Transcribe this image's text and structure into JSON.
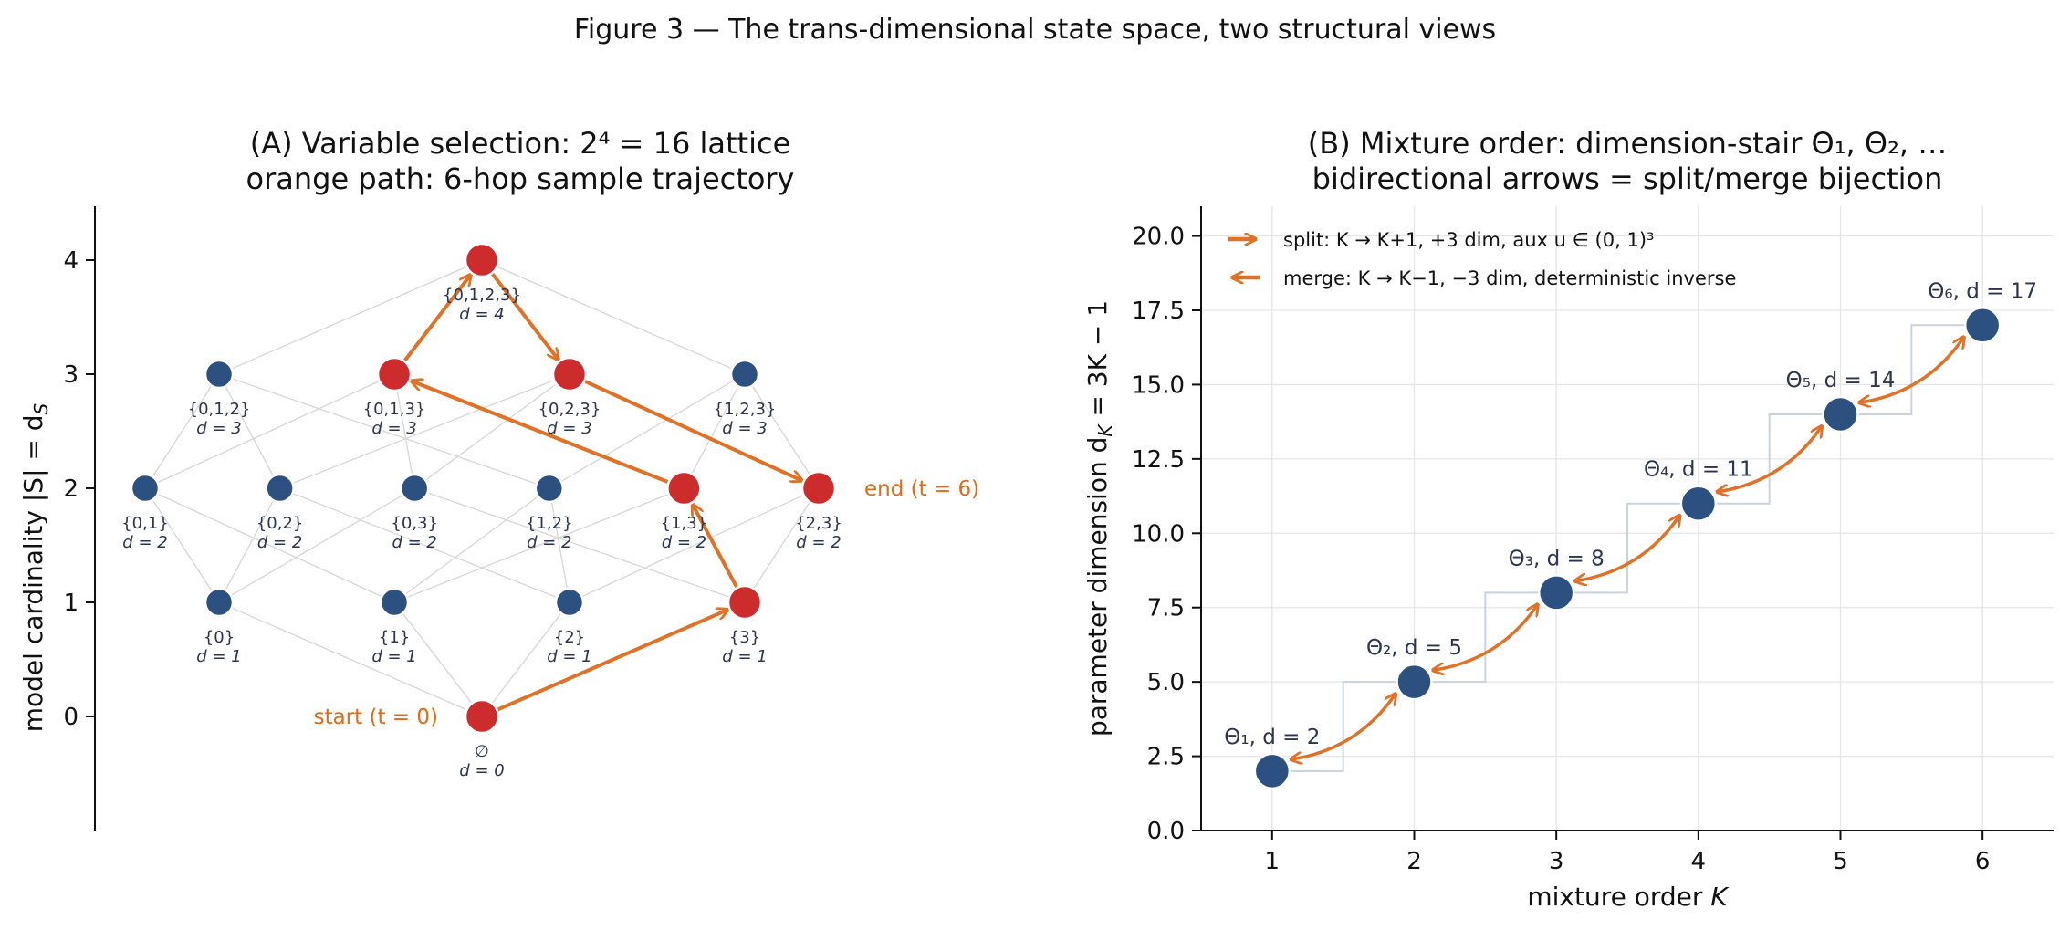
{
  "figure_title": "Figure 3 — The trans-dimensional state space, two structural views",
  "colors": {
    "node_blue": "#2c5080",
    "node_red": "#cd2c2c",
    "path_orange": "#e07127",
    "label_orange": "#e36a12",
    "edge_gray": "#d6d6d6",
    "grid": "#e6e6e6",
    "stair": "#c9d3de"
  },
  "chart_data": [
    {
      "type": "diagram",
      "panel": "A",
      "title_line1": "(A) Variable selection: 2⁴ = 16 lattice",
      "title_line2": "orange path: 6-hop sample trajectory",
      "ylabel": "model cardinality |S| = d_S",
      "yticks": [
        "0",
        "1",
        "2",
        "3",
        "4"
      ],
      "ylim": [
        -1,
        4.5
      ],
      "nodes": [
        {
          "id": "e",
          "label": "∅",
          "dlabel": "d = 0",
          "level": 0,
          "xpos": 0.5
        },
        {
          "id": "0",
          "label": "{0}",
          "dlabel": "d = 1",
          "level": 1,
          "xpos": 0.1
        },
        {
          "id": "1",
          "label": "{1}",
          "dlabel": "d = 1",
          "level": 1,
          "xpos": 0.3667
        },
        {
          "id": "2",
          "label": "{2}",
          "dlabel": "d = 1",
          "level": 1,
          "xpos": 0.6333
        },
        {
          "id": "3",
          "label": "{3}",
          "dlabel": "d = 1",
          "level": 1,
          "xpos": 0.9
        },
        {
          "id": "01",
          "label": "{0,1}",
          "dlabel": "d = 2",
          "level": 2,
          "xpos": -0.0125
        },
        {
          "id": "02",
          "label": "{0,2}",
          "dlabel": "d = 2",
          "level": 2,
          "xpos": 0.1925
        },
        {
          "id": "03",
          "label": "{0,3}",
          "dlabel": "d = 2",
          "level": 2,
          "xpos": 0.3975
        },
        {
          "id": "12",
          "label": "{1,2}",
          "dlabel": "d = 2",
          "level": 2,
          "xpos": 0.6025
        },
        {
          "id": "13",
          "label": "{1,3}",
          "dlabel": "d = 2",
          "level": 2,
          "xpos": 0.8075
        },
        {
          "id": "23",
          "label": "{2,3}",
          "dlabel": "d = 2",
          "level": 2,
          "xpos": 1.0125
        },
        {
          "id": "012",
          "label": "{0,1,2}",
          "dlabel": "d = 3",
          "level": 3,
          "xpos": 0.1
        },
        {
          "id": "013",
          "label": "{0,1,3}",
          "dlabel": "d = 3",
          "level": 3,
          "xpos": 0.3667
        },
        {
          "id": "023",
          "label": "{0,2,3}",
          "dlabel": "d = 3",
          "level": 3,
          "xpos": 0.6333
        },
        {
          "id": "123",
          "label": "{1,2,3}",
          "dlabel": "d = 3",
          "level": 3,
          "xpos": 0.9
        },
        {
          "id": "0123",
          "label": "{0,1,2,3}",
          "dlabel": "d = 4",
          "level": 4,
          "xpos": 0.5
        }
      ],
      "trajectory": [
        "e",
        "3",
        "13",
        "013",
        "0123",
        "023",
        "23"
      ],
      "start_label": "start (t = 0)",
      "end_label": "end (t = 6)"
    },
    {
      "type": "scatter",
      "panel": "B",
      "title_line1": "(B) Mixture order: dimension-stair Θ₁, Θ₂, …",
      "title_line2": "bidirectional arrows = split/merge bijection",
      "xlabel": "mixture order K",
      "ylabel": "parameter dimension d_K = 3K − 1",
      "xlim": [
        0.5,
        6.5
      ],
      "ylim": [
        0,
        21
      ],
      "xticks": [
        "1",
        "2",
        "3",
        "4",
        "5",
        "6"
      ],
      "yticks": [
        "0.0",
        "2.5",
        "5.0",
        "7.5",
        "10.0",
        "12.5",
        "15.0",
        "17.5",
        "20.0"
      ],
      "grid": true,
      "x": [
        1,
        2,
        3,
        4,
        5,
        6
      ],
      "y": [
        2,
        5,
        8,
        11,
        14,
        17
      ],
      "point_labels": [
        "Θ₁, d = 2",
        "Θ₂, d = 5",
        "Θ₃, d = 8",
        "Θ₄, d = 11",
        "Θ₅, d = 14",
        "Θ₆, d = 17"
      ],
      "legend_position": "top-left",
      "legend": [
        {
          "name": "split: K → K+1, +3 dim, aux u ∈ (0, 1)³",
          "direction": "right"
        },
        {
          "name": "merge: K → K−1, −3 dim, deterministic inverse",
          "direction": "left"
        }
      ]
    }
  ]
}
